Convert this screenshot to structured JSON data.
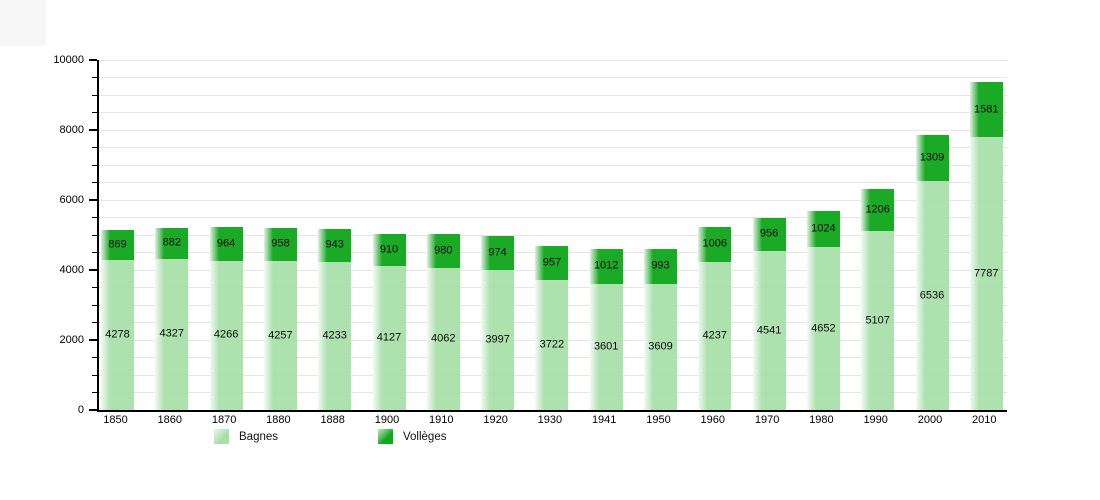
{
  "chart_data": {
    "type": "bar",
    "stacked": true,
    "title": "",
    "xlabel": "",
    "ylabel": "",
    "categories": [
      "1850",
      "1860",
      "1870",
      "1880",
      "1888",
      "1900",
      "1910",
      "1920",
      "1930",
      "1941",
      "1950",
      "1960",
      "1970",
      "1980",
      "1990",
      "2000",
      "2010"
    ],
    "series": [
      {
        "name": "Bagnes",
        "color": "#a7e0a9",
        "values": [
          4278,
          4327,
          4266,
          4257,
          4233,
          4127,
          4062,
          3997,
          3722,
          3601,
          3609,
          4237,
          4541,
          4652,
          5107,
          6536,
          7787
        ]
      },
      {
        "name": "Vollèges",
        "color": "#14a71f",
        "values": [
          869,
          882,
          964,
          958,
          943,
          910,
          980,
          974,
          957,
          1012,
          993,
          1006,
          956,
          1024,
          1206,
          1309,
          1581
        ]
      }
    ],
    "ylim": [
      0,
      10000
    ],
    "y_ticks": [
      0,
      2000,
      4000,
      6000,
      8000,
      10000
    ],
    "y_minor_step": 500,
    "grid": true,
    "legend_position": "bottom"
  }
}
